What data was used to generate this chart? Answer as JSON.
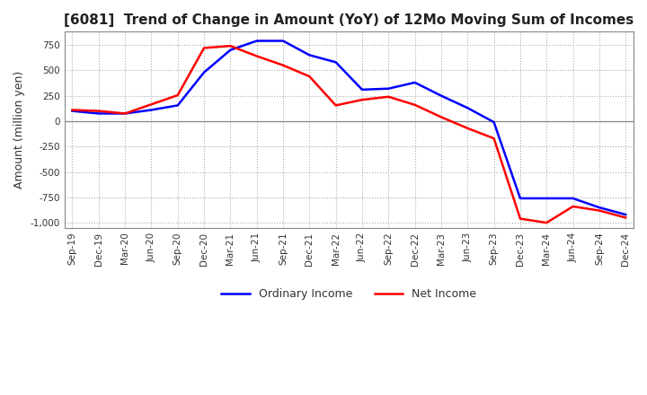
{
  "title": "[6081]  Trend of Change in Amount (YoY) of 12Mo Moving Sum of Incomes",
  "ylabel": "Amount (million yen)",
  "ylim": [
    -1050,
    880
  ],
  "yticks": [
    750,
    500,
    250,
    0,
    -250,
    -500,
    -750,
    -1000
  ],
  "background_color": "#ffffff",
  "grid_color": "#aaaaaa",
  "ordinary_income_color": "#0000ff",
  "net_income_color": "#ff0000",
  "x_labels": [
    "Sep-19",
    "Dec-19",
    "Mar-20",
    "Jun-20",
    "Sep-20",
    "Dec-20",
    "Mar-21",
    "Jun-21",
    "Sep-21",
    "Dec-21",
    "Mar-22",
    "Jun-22",
    "Sep-22",
    "Dec-22",
    "Mar-23",
    "Jun-23",
    "Sep-23",
    "Dec-23",
    "Mar-24",
    "Jun-24",
    "Sep-24",
    "Dec-24"
  ],
  "ordinary_income": [
    100,
    75,
    75,
    110,
    155,
    480,
    700,
    790,
    790,
    650,
    580,
    310,
    320,
    380,
    250,
    130,
    -10,
    -760,
    -760,
    -760,
    -850,
    -920
  ],
  "net_income": [
    110,
    100,
    75,
    165,
    255,
    720,
    740,
    640,
    550,
    440,
    155,
    210,
    240,
    160,
    40,
    -70,
    -170,
    -960,
    -1000,
    -840,
    -880,
    -950
  ],
  "legend_labels": [
    "Ordinary Income",
    "Net Income"
  ],
  "line_width": 1.8
}
